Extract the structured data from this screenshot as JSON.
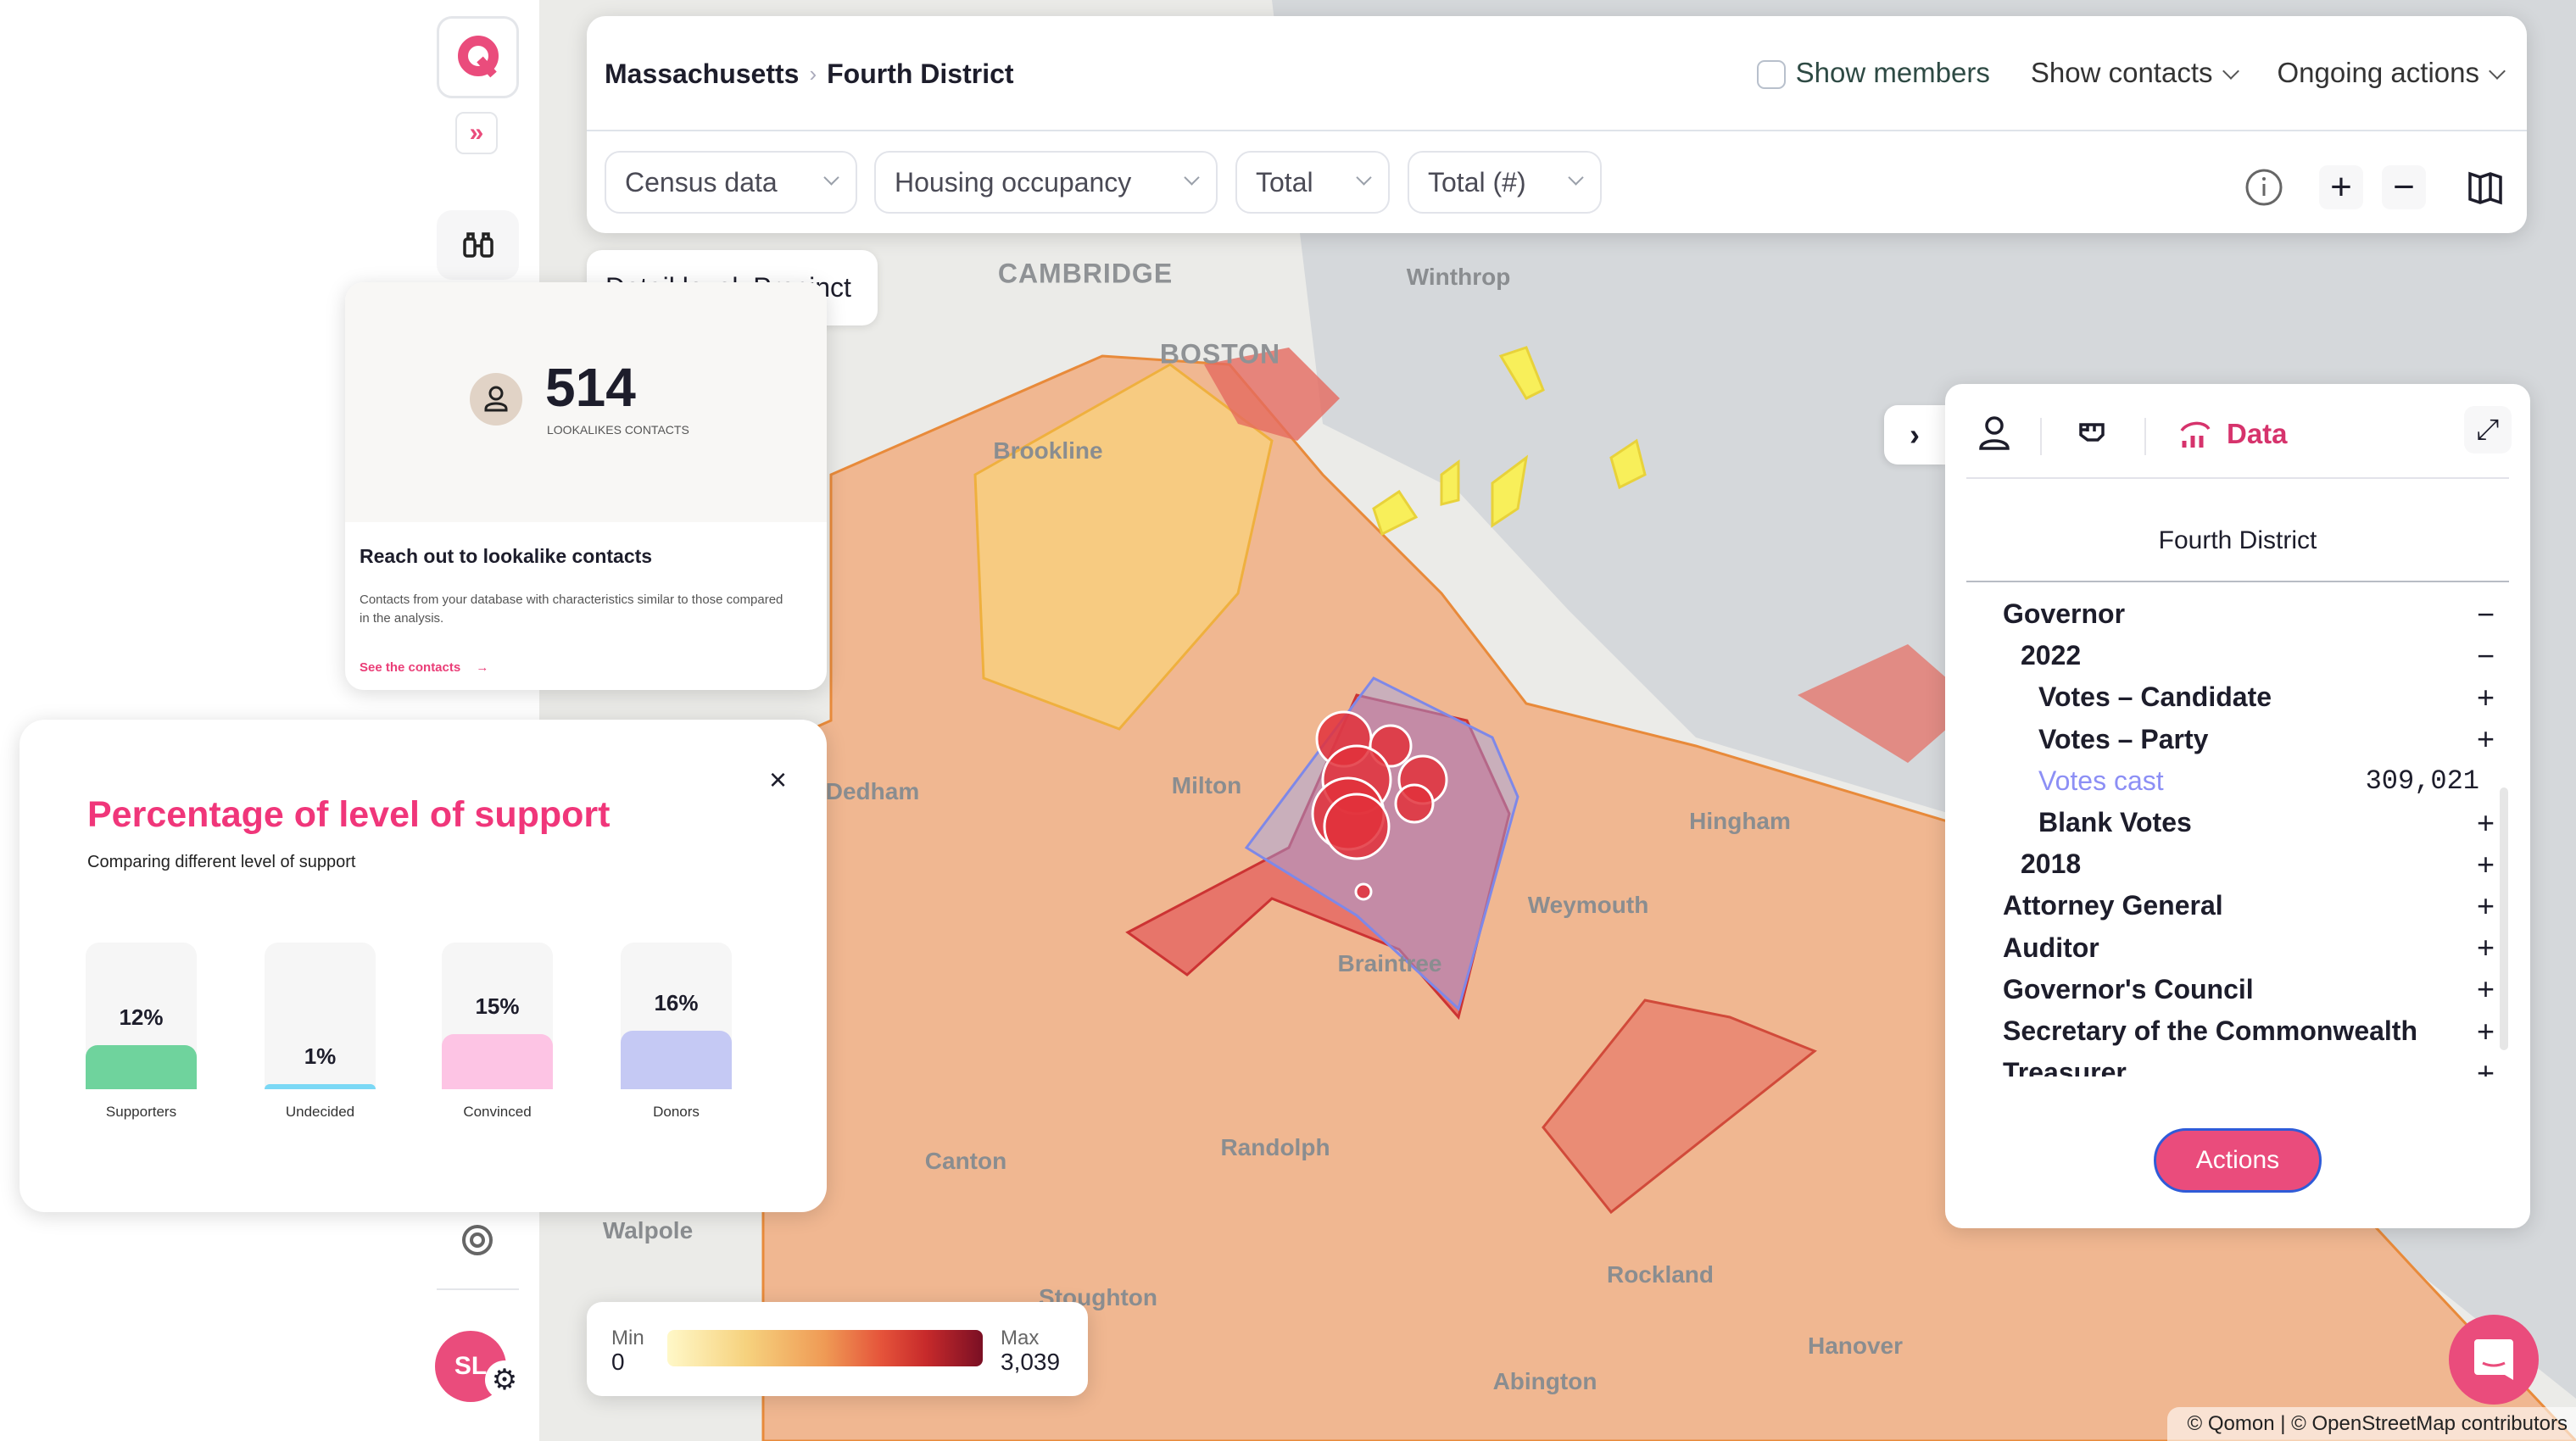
{
  "sidebar": {
    "logo_letter": "Q",
    "avatar_initials": "SL"
  },
  "topbar": {
    "breadcrumb": [
      "Massachusetts",
      "Fourth District"
    ],
    "show_members": "Show members",
    "show_contacts": "Show contacts",
    "ongoing_actions": "Ongoing actions",
    "dropdowns": [
      "Census data",
      "Housing occupancy",
      "Total",
      "Total (#)"
    ]
  },
  "detail_tab": "Detail level: Precinct",
  "lookalike": {
    "count": "514",
    "count_label": "LOOKALIKES CONTACTS",
    "title": "Reach out to lookalike contacts",
    "description": "Contacts from your database with characteristics similar to those compared in the analysis.",
    "link": "See the contacts"
  },
  "support_modal": {
    "title": "Percentage of level of support",
    "subtitle": "Comparing different level of support",
    "close": "×"
  },
  "chart_data": {
    "type": "bar",
    "title": "Percentage of level of support",
    "subtitle": "Comparing different level of support",
    "categories": [
      "Supporters",
      "Undecided",
      "Convinced",
      "Donors"
    ],
    "values": [
      12,
      1,
      15,
      16
    ],
    "labels": [
      "12%",
      "1%",
      "15%",
      "16%"
    ],
    "colors": [
      "#6fd39d",
      "#7bd8f5",
      "#fdc4e4",
      "#c5c9f4"
    ],
    "unit": "%"
  },
  "panel": {
    "tab_data": "Data",
    "district": "Fourth District",
    "tree": [
      {
        "label": "Governor",
        "level": 0,
        "sign": "−"
      },
      {
        "label": "2022",
        "level": 1,
        "sign": "−"
      },
      {
        "label": "Votes – Candidate",
        "level": 2,
        "sign": "+"
      },
      {
        "label": "Votes – Party",
        "level": 2,
        "sign": "+"
      },
      {
        "label": "Votes cast",
        "level": 2,
        "value": "309,021",
        "highlight": true
      },
      {
        "label": "Blank Votes",
        "level": 2,
        "sign": "+"
      },
      {
        "label": "2018",
        "level": 1,
        "sign": "+"
      },
      {
        "label": "Attorney General",
        "level": 0,
        "sign": "+"
      },
      {
        "label": "Auditor",
        "level": 0,
        "sign": "+"
      },
      {
        "label": "Governor's Council",
        "level": 0,
        "sign": "+"
      },
      {
        "label": "Secretary of the Commonwealth",
        "level": 0,
        "sign": "+"
      },
      {
        "label": "Treasurer",
        "level": 0,
        "sign": "+"
      }
    ],
    "actions": "Actions"
  },
  "legend": {
    "min_label": "Min",
    "min_value": "0",
    "max_label": "Max",
    "max_value": "3,039"
  },
  "map_labels": [
    "CAMBRIDGE",
    "Winthrop",
    "BOSTON",
    "Brookline",
    "Milton",
    "Dedham",
    "Hingham",
    "Weymouth",
    "Braintree",
    "Randolph",
    "Canton",
    "Walpole",
    "Stoughton",
    "Rockland",
    "Hanover",
    "Abington"
  ],
  "attribution": "© Qomon | © OpenStreetMap contributors",
  "colors": {
    "accent": "#ea4c7c",
    "title_pink": "#f0367a",
    "highlight": "#8c8ff5"
  }
}
